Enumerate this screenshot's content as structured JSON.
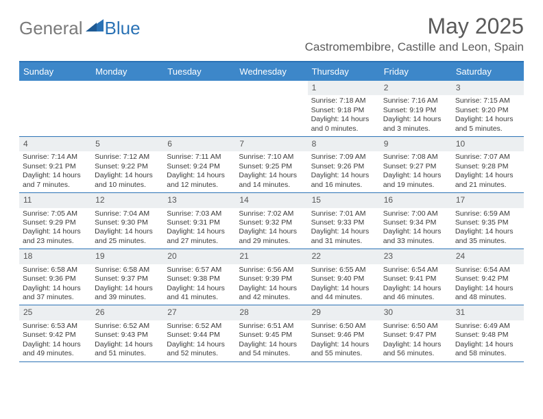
{
  "brand": {
    "part1": "General",
    "part2": "Blue"
  },
  "title": "May 2025",
  "location": "Castromembibre, Castille and Leon, Spain",
  "colors": {
    "header_bg": "#3d87c9",
    "header_text": "#ffffff",
    "border": "#2a72b5",
    "daynum_bg": "#eceff1",
    "text": "#3a3a3a",
    "title_text": "#5a5a5a",
    "logo_gray": "#7a7a7a",
    "logo_blue": "#2a72b5",
    "background": "#ffffff"
  },
  "typography": {
    "title_fontsize": 32,
    "location_fontsize": 17,
    "header_fontsize": 13,
    "daynum_fontsize": 12,
    "body_fontsize": 10.5
  },
  "day_names": [
    "Sunday",
    "Monday",
    "Tuesday",
    "Wednesday",
    "Thursday",
    "Friday",
    "Saturday"
  ],
  "weeks": [
    [
      {
        "empty": true
      },
      {
        "empty": true
      },
      {
        "empty": true
      },
      {
        "empty": true
      },
      {
        "num": "1",
        "sunrise": "Sunrise: 7:18 AM",
        "sunset": "Sunset: 9:18 PM",
        "day1": "Daylight: 14 hours",
        "day2": "and 0 minutes."
      },
      {
        "num": "2",
        "sunrise": "Sunrise: 7:16 AM",
        "sunset": "Sunset: 9:19 PM",
        "day1": "Daylight: 14 hours",
        "day2": "and 3 minutes."
      },
      {
        "num": "3",
        "sunrise": "Sunrise: 7:15 AM",
        "sunset": "Sunset: 9:20 PM",
        "day1": "Daylight: 14 hours",
        "day2": "and 5 minutes."
      }
    ],
    [
      {
        "num": "4",
        "sunrise": "Sunrise: 7:14 AM",
        "sunset": "Sunset: 9:21 PM",
        "day1": "Daylight: 14 hours",
        "day2": "and 7 minutes."
      },
      {
        "num": "5",
        "sunrise": "Sunrise: 7:12 AM",
        "sunset": "Sunset: 9:22 PM",
        "day1": "Daylight: 14 hours",
        "day2": "and 10 minutes."
      },
      {
        "num": "6",
        "sunrise": "Sunrise: 7:11 AM",
        "sunset": "Sunset: 9:24 PM",
        "day1": "Daylight: 14 hours",
        "day2": "and 12 minutes."
      },
      {
        "num": "7",
        "sunrise": "Sunrise: 7:10 AM",
        "sunset": "Sunset: 9:25 PM",
        "day1": "Daylight: 14 hours",
        "day2": "and 14 minutes."
      },
      {
        "num": "8",
        "sunrise": "Sunrise: 7:09 AM",
        "sunset": "Sunset: 9:26 PM",
        "day1": "Daylight: 14 hours",
        "day2": "and 16 minutes."
      },
      {
        "num": "9",
        "sunrise": "Sunrise: 7:08 AM",
        "sunset": "Sunset: 9:27 PM",
        "day1": "Daylight: 14 hours",
        "day2": "and 19 minutes."
      },
      {
        "num": "10",
        "sunrise": "Sunrise: 7:07 AM",
        "sunset": "Sunset: 9:28 PM",
        "day1": "Daylight: 14 hours",
        "day2": "and 21 minutes."
      }
    ],
    [
      {
        "num": "11",
        "sunrise": "Sunrise: 7:05 AM",
        "sunset": "Sunset: 9:29 PM",
        "day1": "Daylight: 14 hours",
        "day2": "and 23 minutes."
      },
      {
        "num": "12",
        "sunrise": "Sunrise: 7:04 AM",
        "sunset": "Sunset: 9:30 PM",
        "day1": "Daylight: 14 hours",
        "day2": "and 25 minutes."
      },
      {
        "num": "13",
        "sunrise": "Sunrise: 7:03 AM",
        "sunset": "Sunset: 9:31 PM",
        "day1": "Daylight: 14 hours",
        "day2": "and 27 minutes."
      },
      {
        "num": "14",
        "sunrise": "Sunrise: 7:02 AM",
        "sunset": "Sunset: 9:32 PM",
        "day1": "Daylight: 14 hours",
        "day2": "and 29 minutes."
      },
      {
        "num": "15",
        "sunrise": "Sunrise: 7:01 AM",
        "sunset": "Sunset: 9:33 PM",
        "day1": "Daylight: 14 hours",
        "day2": "and 31 minutes."
      },
      {
        "num": "16",
        "sunrise": "Sunrise: 7:00 AM",
        "sunset": "Sunset: 9:34 PM",
        "day1": "Daylight: 14 hours",
        "day2": "and 33 minutes."
      },
      {
        "num": "17",
        "sunrise": "Sunrise: 6:59 AM",
        "sunset": "Sunset: 9:35 PM",
        "day1": "Daylight: 14 hours",
        "day2": "and 35 minutes."
      }
    ],
    [
      {
        "num": "18",
        "sunrise": "Sunrise: 6:58 AM",
        "sunset": "Sunset: 9:36 PM",
        "day1": "Daylight: 14 hours",
        "day2": "and 37 minutes."
      },
      {
        "num": "19",
        "sunrise": "Sunrise: 6:58 AM",
        "sunset": "Sunset: 9:37 PM",
        "day1": "Daylight: 14 hours",
        "day2": "and 39 minutes."
      },
      {
        "num": "20",
        "sunrise": "Sunrise: 6:57 AM",
        "sunset": "Sunset: 9:38 PM",
        "day1": "Daylight: 14 hours",
        "day2": "and 41 minutes."
      },
      {
        "num": "21",
        "sunrise": "Sunrise: 6:56 AM",
        "sunset": "Sunset: 9:39 PM",
        "day1": "Daylight: 14 hours",
        "day2": "and 42 minutes."
      },
      {
        "num": "22",
        "sunrise": "Sunrise: 6:55 AM",
        "sunset": "Sunset: 9:40 PM",
        "day1": "Daylight: 14 hours",
        "day2": "and 44 minutes."
      },
      {
        "num": "23",
        "sunrise": "Sunrise: 6:54 AM",
        "sunset": "Sunset: 9:41 PM",
        "day1": "Daylight: 14 hours",
        "day2": "and 46 minutes."
      },
      {
        "num": "24",
        "sunrise": "Sunrise: 6:54 AM",
        "sunset": "Sunset: 9:42 PM",
        "day1": "Daylight: 14 hours",
        "day2": "and 48 minutes."
      }
    ],
    [
      {
        "num": "25",
        "sunrise": "Sunrise: 6:53 AM",
        "sunset": "Sunset: 9:42 PM",
        "day1": "Daylight: 14 hours",
        "day2": "and 49 minutes."
      },
      {
        "num": "26",
        "sunrise": "Sunrise: 6:52 AM",
        "sunset": "Sunset: 9:43 PM",
        "day1": "Daylight: 14 hours",
        "day2": "and 51 minutes."
      },
      {
        "num": "27",
        "sunrise": "Sunrise: 6:52 AM",
        "sunset": "Sunset: 9:44 PM",
        "day1": "Daylight: 14 hours",
        "day2": "and 52 minutes."
      },
      {
        "num": "28",
        "sunrise": "Sunrise: 6:51 AM",
        "sunset": "Sunset: 9:45 PM",
        "day1": "Daylight: 14 hours",
        "day2": "and 54 minutes."
      },
      {
        "num": "29",
        "sunrise": "Sunrise: 6:50 AM",
        "sunset": "Sunset: 9:46 PM",
        "day1": "Daylight: 14 hours",
        "day2": "and 55 minutes."
      },
      {
        "num": "30",
        "sunrise": "Sunrise: 6:50 AM",
        "sunset": "Sunset: 9:47 PM",
        "day1": "Daylight: 14 hours",
        "day2": "and 56 minutes."
      },
      {
        "num": "31",
        "sunrise": "Sunrise: 6:49 AM",
        "sunset": "Sunset: 9:48 PM",
        "day1": "Daylight: 14 hours",
        "day2": "and 58 minutes."
      }
    ]
  ]
}
